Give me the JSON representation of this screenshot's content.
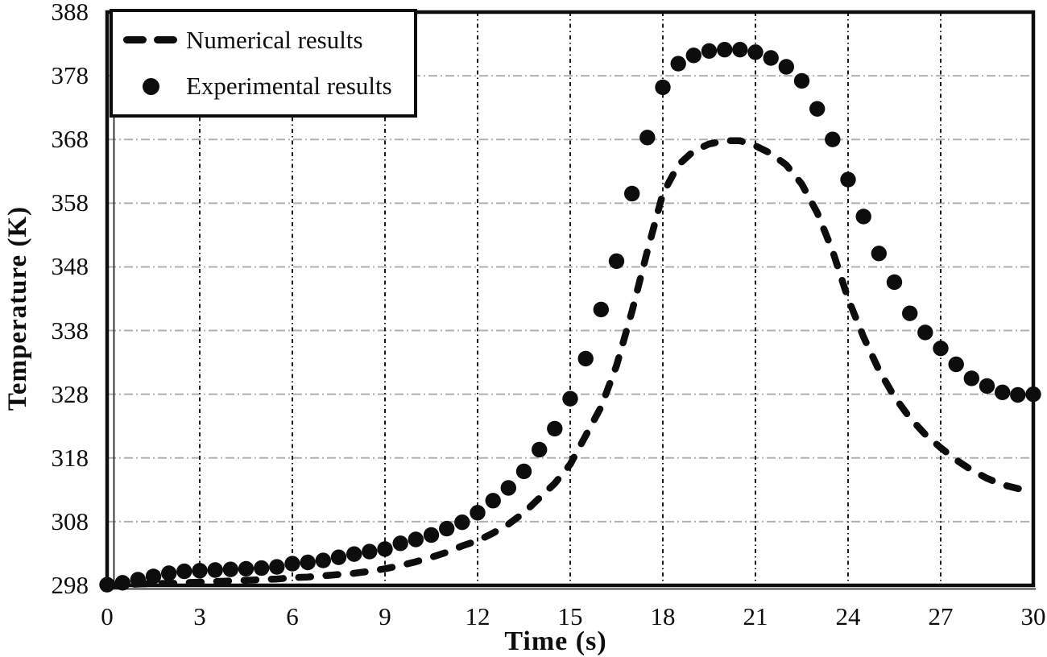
{
  "chart_data": {
    "type": "line+scatter",
    "title": "",
    "xlabel": "Time (s)",
    "ylabel": "Temperature (K)",
    "xlim": [
      0,
      30
    ],
    "ylim": [
      298,
      388
    ],
    "xticks": [
      0,
      3,
      6,
      9,
      12,
      15,
      18,
      21,
      24,
      27,
      30
    ],
    "yticks": [
      298,
      308,
      318,
      328,
      338,
      348,
      358,
      368,
      378,
      388
    ],
    "grid": "vertical dash-dot dark lines at x ticks, horizontal dash-dot gray lines at y ticks",
    "legend_position": "top-left inside plot, black border box",
    "colors": {
      "series": "#0d0d0d",
      "frame": "#0d0d0d",
      "grid_vertical": "#1a1a1a",
      "grid_horizontal": "#b0b0b0",
      "background": "#ffffff"
    },
    "series": [
      {
        "name": "Numerical results",
        "style": "dashed-line",
        "color": "#0d0d0d",
        "x": [
          0,
          0.5,
          1,
          1.5,
          2,
          2.5,
          3,
          3.5,
          4,
          4.5,
          5,
          5.5,
          6,
          6.5,
          7,
          7.5,
          8,
          8.5,
          9,
          9.5,
          10,
          10.5,
          11,
          11.5,
          12,
          12.5,
          13,
          13.5,
          14,
          14.5,
          15,
          15.5,
          16,
          16.5,
          17,
          17.5,
          18,
          18.5,
          19,
          19.5,
          20,
          20.5,
          21,
          21.5,
          22,
          22.5,
          23,
          23.5,
          24,
          24.5,
          25,
          25.5,
          26,
          26.5,
          27,
          27.5,
          28,
          28.5,
          29,
          29.5,
          30
        ],
        "y": [
          298.0,
          298.1,
          298.2,
          298.3,
          298.3,
          298.4,
          298.5,
          298.6,
          298.7,
          298.8,
          298.9,
          299.0,
          299.2,
          299.3,
          299.5,
          299.7,
          299.9,
          300.2,
          300.6,
          301.1,
          301.7,
          302.4,
          303.2,
          304.2,
          305.0,
          306.2,
          307.6,
          309.4,
          311.7,
          314.0,
          317.0,
          321.5,
          326.0,
          332.5,
          341.0,
          350.5,
          359.5,
          364.0,
          366.2,
          367.3,
          367.8,
          367.8,
          367.0,
          365.8,
          364.0,
          361.0,
          356.5,
          350.5,
          343.0,
          337.0,
          331.8,
          327.6,
          324.3,
          321.7,
          319.6,
          317.7,
          316.1,
          314.8,
          313.8,
          313.2,
          313.0
        ]
      },
      {
        "name": "Experimental results",
        "style": "scatter-dots",
        "color": "#0d0d0d",
        "x": [
          0,
          0.5,
          1,
          1.5,
          2,
          2.5,
          3,
          3.5,
          4,
          4.5,
          5,
          5.5,
          6,
          6.5,
          7,
          7.5,
          8,
          8.5,
          9,
          9.5,
          10,
          10.5,
          11,
          11.5,
          12,
          12.5,
          13,
          13.5,
          14,
          14.5,
          15,
          15.5,
          16,
          16.5,
          17,
          17.5,
          18,
          18.5,
          19,
          19.5,
          20,
          20.5,
          21,
          21.5,
          22,
          22.5,
          23,
          23.5,
          24,
          24.5,
          25,
          25.5,
          26,
          26.5,
          27,
          27.5,
          28,
          28.5,
          29,
          29.5,
          30
        ],
        "y": [
          298.1,
          298.4,
          298.9,
          299.4,
          299.9,
          300.2,
          300.3,
          300.4,
          300.5,
          300.6,
          300.7,
          300.9,
          301.4,
          301.6,
          301.9,
          302.4,
          302.9,
          303.3,
          303.7,
          304.6,
          305.2,
          305.9,
          306.9,
          307.9,
          309.4,
          311.3,
          313.3,
          315.9,
          319.3,
          322.6,
          327.3,
          333.6,
          341.3,
          348.9,
          359.5,
          368.3,
          376.2,
          379.9,
          381.2,
          381.9,
          382.1,
          382.1,
          381.7,
          380.8,
          379.4,
          377.2,
          372.8,
          368.0,
          361.7,
          355.9,
          350.1,
          345.6,
          340.7,
          337.7,
          335.2,
          332.7,
          330.5,
          329.3,
          328.3,
          327.9,
          328.0
        ]
      }
    ]
  }
}
